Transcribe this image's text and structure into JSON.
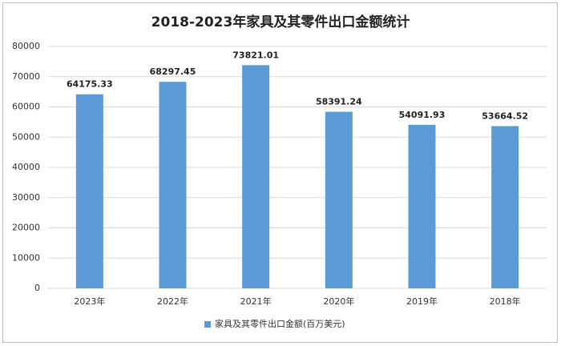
{
  "chart_data": {
    "type": "bar",
    "title": "2018-2023年家具及其零件出口金额统计",
    "categories": [
      "2023年",
      "2022年",
      "2021年",
      "2020年",
      "2019年",
      "2018年"
    ],
    "series": [
      {
        "name": "家具及其零件出口金额(百万美元)",
        "color": "#5b9bd5",
        "values": [
          64175.33,
          68297.45,
          73821.01,
          58391.24,
          54091.93,
          53664.52
        ]
      }
    ],
    "ylim": [
      0,
      80000
    ],
    "yticks": [
      0,
      10000,
      20000,
      30000,
      40000,
      50000,
      60000,
      70000,
      80000
    ],
    "grid": true,
    "legend": "bottom"
  }
}
